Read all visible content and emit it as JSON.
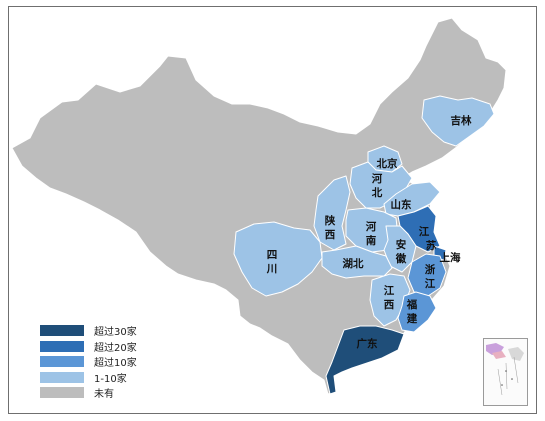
{
  "colors": {
    "over30": "#1f4e79",
    "over20": "#2e6eb5",
    "over10": "#5b96d6",
    "range1_10": "#9dc3e6",
    "none": "#bdbdbd",
    "background": "#ffffff",
    "border": "#ffffff"
  },
  "legend": [
    {
      "label": "超过30家",
      "color_key": "over30"
    },
    {
      "label": "超过20家",
      "color_key": "over20"
    },
    {
      "label": "超过10家",
      "color_key": "over10"
    },
    {
      "label": "1-10家",
      "color_key": "range1_10"
    },
    {
      "label": "未有",
      "color_key": "none"
    }
  ],
  "provinces": {
    "jilin": {
      "label": "吉林",
      "category": "1-10家"
    },
    "beijing": {
      "label": "北京",
      "category": "1-10家"
    },
    "hebei": {
      "label": "河北",
      "category": "1-10家"
    },
    "shandong": {
      "label": "山东",
      "category": "1-10家"
    },
    "shaanxi": {
      "label": "陕西",
      "category": "1-10家"
    },
    "henan": {
      "label": "河南",
      "category": "1-10家"
    },
    "jiangsu": {
      "label": "江苏",
      "category": "超过20家"
    },
    "anhui": {
      "label": "安徽",
      "category": "1-10家"
    },
    "shanghai": {
      "label": "上海",
      "category": "超过20家"
    },
    "sichuan": {
      "label": "四川",
      "category": "1-10家"
    },
    "hubei": {
      "label": "湖北",
      "category": "1-10家"
    },
    "zhejiang": {
      "label": "浙江",
      "category": "超过10家"
    },
    "jiangxi": {
      "label": "江西",
      "category": "1-10家"
    },
    "fujian": {
      "label": "福建",
      "category": "超过10家"
    },
    "guangdong": {
      "label": "广东",
      "category": "超过30家"
    }
  }
}
